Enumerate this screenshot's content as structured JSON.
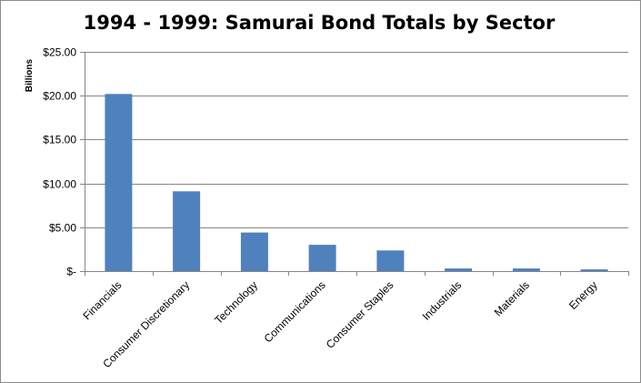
{
  "chart_data": {
    "type": "bar",
    "title": "1994 - 1999: Samurai Bond Totals by Sector",
    "xlabel": "",
    "ylabel": "Billions",
    "categories": [
      "Financials",
      "Consumer Discretionary",
      "Technology",
      "Communications",
      "Consumer Staples",
      "Industrials",
      "Materials",
      "Energy"
    ],
    "values": [
      20.2,
      9.1,
      4.4,
      3.0,
      2.35,
      0.3,
      0.3,
      0.2
    ],
    "ylim": [
      0,
      25
    ],
    "yticks": [
      0,
      5,
      10,
      15,
      20,
      25
    ],
    "ytick_labels": [
      "$-",
      "$5.00",
      "$10.00",
      "$15.00",
      "$20.00",
      "$25.00"
    ],
    "grid": true,
    "legend": "none",
    "bar_color": "#4f81bd"
  }
}
